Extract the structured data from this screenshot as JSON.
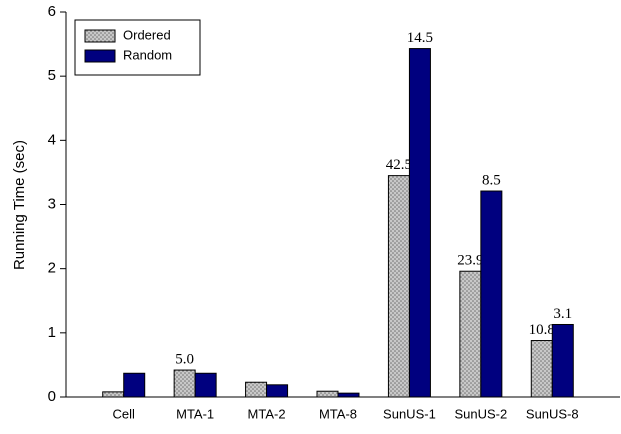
{
  "chart_data": {
    "type": "bar",
    "y_label": "Running Time (sec)",
    "categories": [
      "Cell",
      "MTA-1",
      "MTA-2",
      "MTA-8",
      "SunUS-1",
      "SunUS-2",
      "SunUS-8"
    ],
    "series": [
      {
        "name": "Ordered",
        "color": "#c8c8c8",
        "pattern": "dots",
        "values": [
          0.08,
          0.42,
          0.23,
          0.09,
          3.45,
          1.96,
          0.88
        ],
        "labels": [
          null,
          "5.0",
          null,
          null,
          "42.5",
          "23.9",
          "10.8"
        ]
      },
      {
        "name": "Random",
        "color": "#00007f",
        "values": [
          0.37,
          0.37,
          0.19,
          0.06,
          5.43,
          3.21,
          1.13
        ],
        "labels": [
          null,
          null,
          null,
          null,
          "14.5",
          "8.5",
          "3.1"
        ]
      }
    ],
    "ylim": [
      0,
      6
    ],
    "yticks": [
      0,
      1,
      2,
      3,
      4,
      5,
      6
    ],
    "grid": false,
    "legend": "upper left"
  }
}
